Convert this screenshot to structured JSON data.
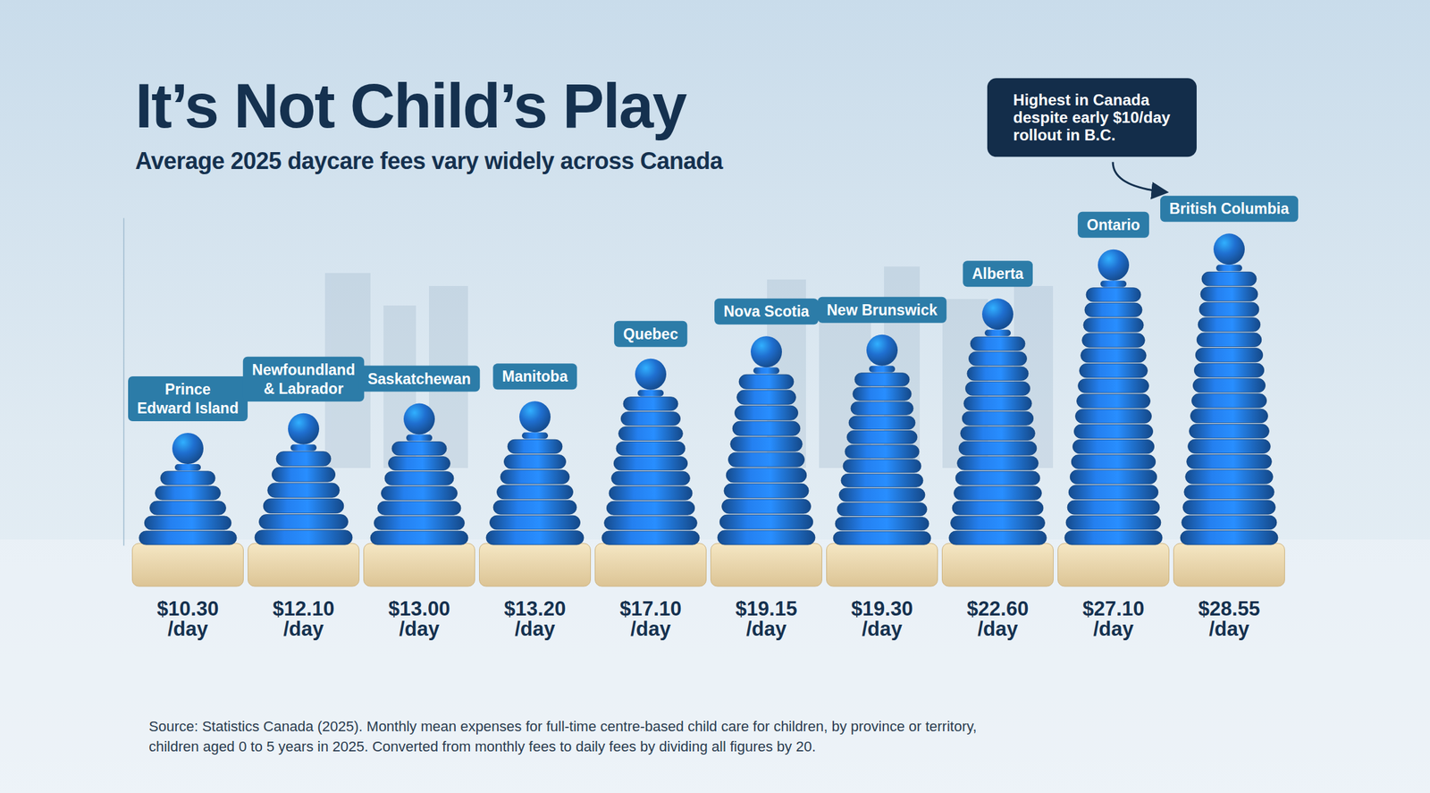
{
  "chart_data": {
    "type": "bar",
    "title": "It’s Not Child’s Play",
    "subtitle": "Average 2025 daycare fees vary widely across Canada",
    "categories": [
      "Prince Edward Island",
      "Newfoundland & Labrador",
      "Saskatchewan",
      "Manitoba",
      "Quebec",
      "Nova Scotia",
      "New Brunswick",
      "Alberta",
      "Ontario",
      "British Columbia"
    ],
    "values": [
      10.3,
      12.1,
      13.0,
      13.2,
      17.1,
      19.15,
      19.3,
      22.6,
      27.1,
      28.55
    ],
    "value_labels": [
      "$10.30 /day",
      "$12.10 /day",
      "$13.00 /day",
      "$13.20 /day",
      "$17.10 /day",
      "$19.15 /day",
      "$19.30 /day",
      "$22.60 /day",
      "$27.10 /day",
      "$28.55 /day"
    ],
    "data_labels": true,
    "color": "#1f6fd0",
    "ylim": [
      0,
      30
    ],
    "annotations": [
      {
        "text": "Highest in Canada despite early $10/day rollout in B.C.",
        "category": "British Columbia"
      }
    ],
    "source": "Source: Statistics Canada (2025). Monthly mean expenses for full-time centre-based child care for children, by province or territory, children aged 0 to 5 years in 2025. Converted from monthly fees to daily fees by dividing all figures by 20."
  }
}
